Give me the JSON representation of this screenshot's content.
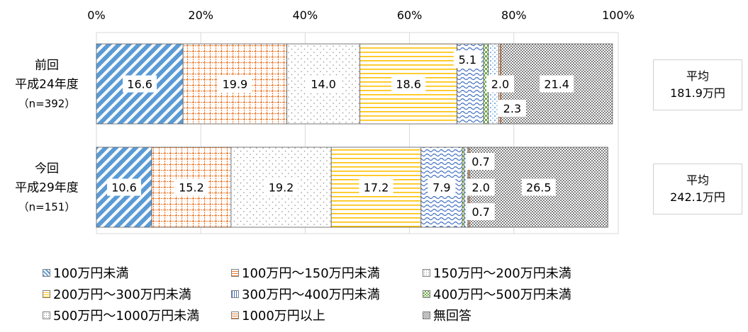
{
  "chart_data": {
    "type": "bar",
    "orientation": "horizontal",
    "stacked": true,
    "percent": true,
    "categories": [
      {
        "lines": [
          "前回",
          "平成24年度",
          "（n=392）"
        ]
      },
      {
        "lines": [
          "今回",
          "平成29年度",
          "（n=151）"
        ]
      }
    ],
    "x_ticks": [
      "0%",
      "20%",
      "40%",
      "60%",
      "80%",
      "100%"
    ],
    "xlim": [
      0,
      100
    ],
    "grid": true,
    "legend_position": "bottom",
    "series": [
      {
        "name": "100万円未満",
        "values": [
          16.6,
          10.6
        ],
        "labels": [
          "16.6",
          "10.6"
        ],
        "color": "#5b9bd5",
        "pattern": "diag"
      },
      {
        "name": "100万円～150万円未満",
        "values": [
          19.9,
          15.2
        ],
        "labels": [
          "19.9",
          "15.2"
        ],
        "color": "#ed7d31",
        "pattern": "grid"
      },
      {
        "name": "150万円～200万円未満",
        "values": [
          14.0,
          19.2
        ],
        "labels": [
          "14.0",
          "19.2"
        ],
        "color": "#a5a5a5",
        "pattern": "dots"
      },
      {
        "name": "200万円～300万円未満",
        "values": [
          18.6,
          17.2
        ],
        "labels": [
          "18.6",
          "17.2"
        ],
        "color": "#ffc000",
        "pattern": "hlines"
      },
      {
        "name": "300万円～400万円未満",
        "values": [
          5.1,
          7.9
        ],
        "labels": [
          "5.1",
          "7.9"
        ],
        "color": "#4472c4",
        "pattern": "waves"
      },
      {
        "name": "400万円～500万円未満",
        "values": [
          0.9,
          0.4
        ],
        "labels": [
          "",
          ""
        ],
        "color": "#70ad47",
        "pattern": "check"
      },
      {
        "name": "500万円～1000万円未満",
        "values": [
          2.0,
          0.7
        ],
        "labels": [
          "2.0",
          "0.7"
        ],
        "color": "#5b9bd5",
        "pattern": "dots"
      },
      {
        "name": "1000万円以上",
        "values": [
          0.4,
          0.3
        ],
        "labels": [
          "",
          ""
        ],
        "color": "#ed7d31",
        "pattern": "grid"
      },
      {
        "name": "無回答",
        "values": [
          21.4,
          26.5
        ],
        "labels": [
          "21.4",
          "26.5"
        ],
        "color": "#7f7f7f",
        "pattern": "dense"
      }
    ],
    "extra_labels": [
      {
        "bar": 0,
        "text": "2.3"
      },
      {
        "bar": 1,
        "text": "2.0"
      },
      {
        "bar": 1,
        "text": "0.7"
      }
    ]
  },
  "averages": [
    {
      "title": "平均",
      "value": "181.9万円"
    },
    {
      "title": "平均",
      "value": "242.1万円"
    }
  ]
}
